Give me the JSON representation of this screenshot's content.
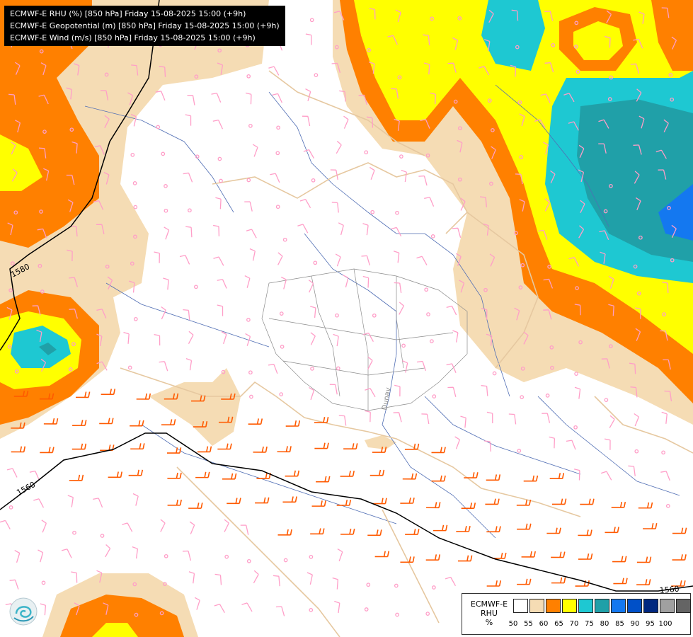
{
  "title_lines": [
    "ECMWF-E RHU (%) [850 hPa] Friday 15-08-2025 15:00 (+9h)",
    "ECMWF-E Geopotential (m) [850 hPa] Friday 15-08-2025 15:00 (+9h)",
    "ECMWF-E Wind (m/s) [850 hPa] Friday 15-08-2025 15:00 (+9h)"
  ],
  "contour_labels": [
    "1580",
    "1560",
    "1560"
  ],
  "river_label": "Dunav",
  "legend": {
    "label_lines": [
      "ECMWF-E",
      "RHU",
      "%"
    ],
    "colors": [
      "#ffffff",
      "#f5dcb4",
      "#ff8000",
      "#ffff00",
      "#1ec8d2",
      "#20a0a8",
      "#1478f0",
      "#0050c8",
      "#002880",
      "#a0a0a0",
      "#646464"
    ],
    "ticks": [
      "50",
      "55",
      "60",
      "65",
      "70",
      "75",
      "80",
      "85",
      "90",
      "95",
      "100"
    ]
  },
  "colors": {
    "rh_50_55": "#f5dcb4",
    "rh_55_60": "#ff8000",
    "rh_60_65": "#ffff00",
    "rh_65_70": "#1ec8d2",
    "rh_70_75": "#20a0a8",
    "rh_75_80": "#1478f0",
    "wind_strong": "#ff5a00",
    "wind_weak": "#ff9ec8",
    "geopotential_contour": "#000000",
    "borders": "#e6c8a0",
    "rivers": "#506eb4"
  }
}
